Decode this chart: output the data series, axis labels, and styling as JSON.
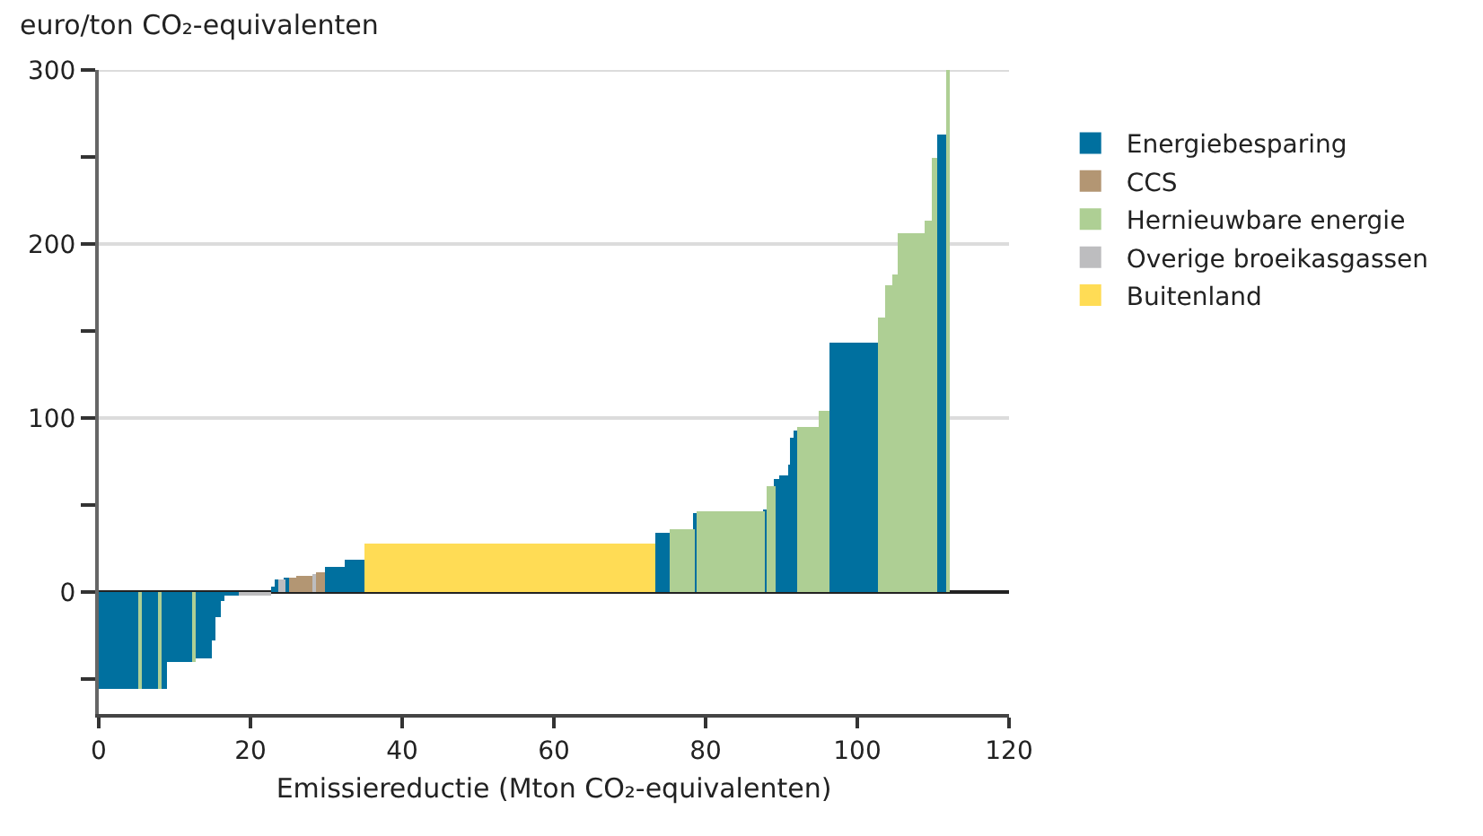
{
  "chart_data": {
    "type": "histogram",
    "ylabel": "euro/ton CO₂-equivalenten",
    "xlabel": "Emissiereductie (Mton CO₂-equivalenten)",
    "bins": [
      0,
      5.4,
      5.6,
      8.0,
      8.2,
      8.9,
      12.5,
      12.7,
      15.0,
      15.5,
      16.0,
      16.5,
      18.5,
      22.7,
      23.2,
      23.7,
      24.6,
      25.0,
      26.0,
      28.2,
      28.6,
      29.8,
      32.4,
      35.0,
      73.4,
      75.2,
      78.5,
      78.8,
      87.8,
      88.0,
      89.2,
      89.6,
      91.0,
      91.35,
      91.7,
      92.0,
      94.9,
      96.3,
      102.7,
      103.7,
      104.6,
      105.3,
      108.9,
      109.8,
      110.5,
      111.7,
      112.2
    ],
    "series": [
      {
        "name": "Energiebesparing",
        "color": "#00709f",
        "values": [
          -56,
          null,
          -56,
          null,
          -56,
          -40,
          null,
          -38,
          -28,
          -14,
          -5,
          -1,
          null,
          3,
          7,
          null,
          8,
          null,
          null,
          null,
          null,
          15,
          19,
          null,
          34,
          null,
          45,
          null,
          48,
          null,
          65,
          67,
          73,
          89,
          93,
          null,
          null,
          143,
          null,
          null,
          null,
          null,
          null,
          null,
          263,
          null
        ]
      },
      {
        "name": "CCS",
        "color": "#b39673",
        "values": [
          null,
          null,
          null,
          null,
          null,
          null,
          null,
          null,
          null,
          null,
          null,
          null,
          null,
          null,
          null,
          null,
          null,
          8,
          9,
          null,
          11,
          null,
          null,
          null,
          null,
          null,
          null,
          null,
          null,
          null,
          null,
          null,
          null,
          null,
          null,
          null,
          null,
          null,
          null,
          null,
          null,
          null,
          null,
          null,
          null,
          null
        ]
      },
      {
        "name": "Hernieuwbare energie",
        "color": "#aecf94",
        "values": [
          null,
          -56,
          null,
          -56,
          null,
          null,
          -40,
          null,
          null,
          null,
          null,
          null,
          null,
          null,
          null,
          null,
          null,
          null,
          null,
          null,
          null,
          null,
          null,
          null,
          null,
          36,
          null,
          46,
          null,
          61,
          null,
          null,
          null,
          null,
          null,
          95,
          104,
          null,
          158,
          176,
          182,
          206,
          213,
          249,
          null,
          300
        ]
      },
      {
        "name": "Overige broeikasgassen",
        "color": "#bdbdbf",
        "values": [
          null,
          null,
          null,
          null,
          null,
          null,
          null,
          null,
          null,
          null,
          null,
          null,
          -1,
          null,
          null,
          7,
          null,
          null,
          null,
          10,
          null,
          null,
          null,
          null,
          null,
          null,
          null,
          null,
          null,
          null,
          null,
          null,
          null,
          null,
          null,
          null,
          null,
          null,
          null,
          null,
          null,
          null,
          null,
          null,
          null,
          null
        ]
      },
      {
        "name": "Buitenland",
        "color": "#ffdc55",
        "values": [
          null,
          null,
          null,
          null,
          null,
          null,
          null,
          null,
          null,
          null,
          null,
          null,
          null,
          null,
          null,
          null,
          null,
          null,
          null,
          null,
          null,
          null,
          null,
          28,
          null,
          null,
          null,
          null,
          null,
          null,
          null,
          null,
          null,
          null,
          null,
          null,
          null,
          null,
          null,
          null,
          null,
          null,
          null,
          null,
          null,
          null
        ]
      }
    ],
    "xlim": [
      0,
      120
    ],
    "xticks": [
      0,
      20,
      40,
      60,
      80,
      100,
      120
    ],
    "ylim": [
      -70,
      300
    ],
    "yticks": [
      {
        "value": -50,
        "label": null
      },
      0,
      {
        "value": 50,
        "label": null
      },
      100,
      {
        "value": 150,
        "label": null
      },
      200,
      {
        "value": 250,
        "label": null
      },
      300
    ],
    "grid": "y",
    "legend": "right"
  }
}
